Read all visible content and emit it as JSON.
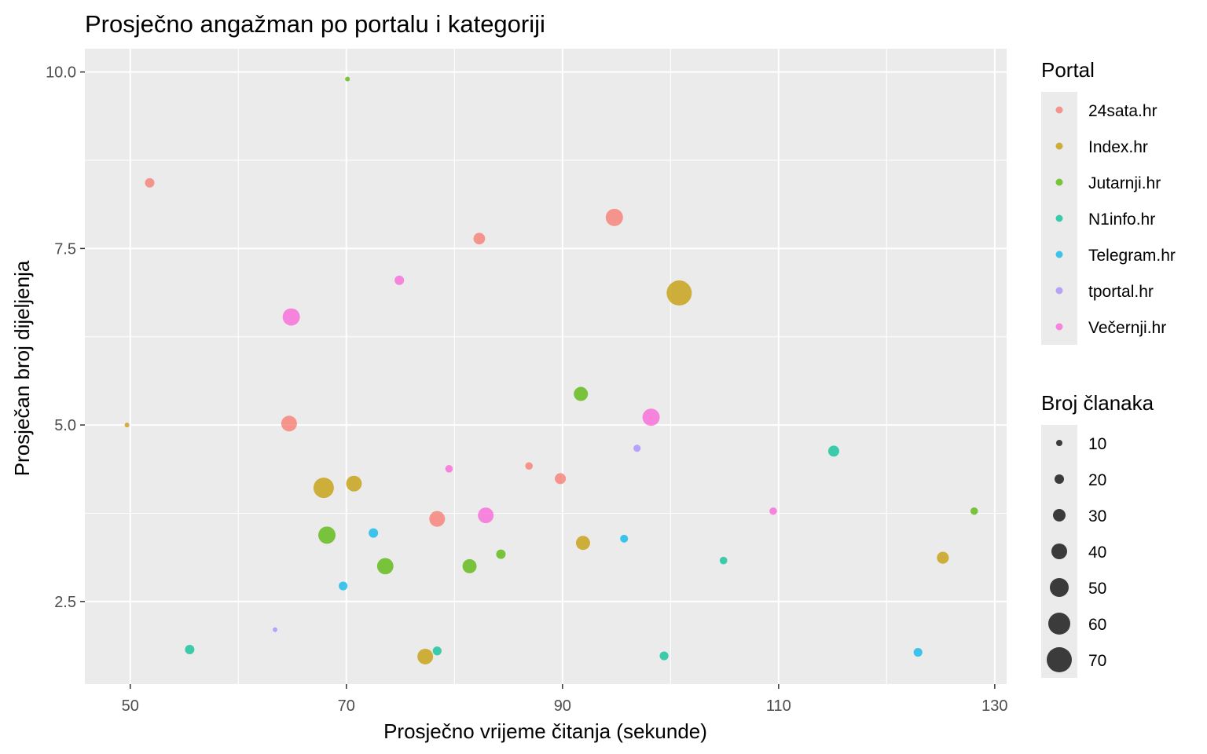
{
  "chart_data": {
    "type": "scatter",
    "title": "Prosječno angažman po portalu i kategoriji",
    "xlabel": "Prosječno vrijeme čitanja (sekunde)",
    "ylabel": "Prosječan broj dijeljenja",
    "xlim": [
      45.8,
      131.1
    ],
    "ylim": [
      1.33,
      10.33
    ],
    "x_ticks": [
      50,
      70,
      90,
      110,
      130
    ],
    "x_tick_labels": [
      "50",
      "70",
      "90",
      "110",
      "130"
    ],
    "y_ticks": [
      2.5,
      5.0,
      7.5,
      10.0
    ],
    "y_tick_labels": [
      "2.5",
      "5.0",
      "7.5",
      "10.0"
    ],
    "grid": true,
    "background": "#ebebeb",
    "point_opacity": 0.75,
    "legend_position": "right",
    "color_legend": {
      "title": "Portal",
      "entries": [
        {
          "label": "24sata.hr",
          "color": "#F8766D"
        },
        {
          "label": "Index.hr",
          "color": "#C49A00"
        },
        {
          "label": "Jutarnji.hr",
          "color": "#53B400"
        },
        {
          "label": "N1info.hr",
          "color": "#00C094"
        },
        {
          "label": "Telegram.hr",
          "color": "#00B6EB"
        },
        {
          "label": "tportal.hr",
          "color": "#A58AFF"
        },
        {
          "label": "Večernji.hr",
          "color": "#FB61D7"
        }
      ]
    },
    "size_legend": {
      "title": "Broj članaka",
      "values": [
        10,
        20,
        30,
        40,
        50,
        60,
        70
      ],
      "labels": [
        "10",
        "20",
        "30",
        "40",
        "50",
        "60",
        "70"
      ]
    },
    "series": [
      {
        "name": "24sata.hr",
        "points": [
          {
            "x": 51.8,
            "y": 8.43,
            "size": 20
          },
          {
            "x": 82.3,
            "y": 7.64,
            "size": 27
          },
          {
            "x": 94.8,
            "y": 7.94,
            "size": 45
          },
          {
            "x": 64.7,
            "y": 5.02,
            "size": 40
          },
          {
            "x": 86.9,
            "y": 4.42,
            "size": 14
          },
          {
            "x": 89.8,
            "y": 4.24,
            "size": 25
          },
          {
            "x": 78.4,
            "y": 3.67,
            "size": 40
          }
        ]
      },
      {
        "name": "Index.hr",
        "points": [
          {
            "x": 100.8,
            "y": 6.87,
            "size": 70
          },
          {
            "x": 49.7,
            "y": 5.0,
            "size": 5
          },
          {
            "x": 67.9,
            "y": 4.11,
            "size": 55
          },
          {
            "x": 70.7,
            "y": 4.17,
            "size": 40
          },
          {
            "x": 91.9,
            "y": 3.33,
            "size": 35
          },
          {
            "x": 125.2,
            "y": 3.12,
            "size": 28
          },
          {
            "x": 77.3,
            "y": 1.72,
            "size": 40
          }
        ]
      },
      {
        "name": "Jutarnji.hr",
        "points": [
          {
            "x": 70.1,
            "y": 9.9,
            "size": 5
          },
          {
            "x": 91.7,
            "y": 5.44,
            "size": 35
          },
          {
            "x": 68.2,
            "y": 3.44,
            "size": 45
          },
          {
            "x": 73.6,
            "y": 3.0,
            "size": 42
          },
          {
            "x": 81.4,
            "y": 3.0,
            "size": 35
          },
          {
            "x": 84.3,
            "y": 3.17,
            "size": 20
          },
          {
            "x": 128.1,
            "y": 3.78,
            "size": 14
          }
        ]
      },
      {
        "name": "N1info.hr",
        "points": [
          {
            "x": 55.5,
            "y": 1.82,
            "size": 20
          },
          {
            "x": 78.4,
            "y": 1.8,
            "size": 18
          },
          {
            "x": 99.4,
            "y": 1.73,
            "size": 18
          },
          {
            "x": 104.9,
            "y": 3.08,
            "size": 14
          },
          {
            "x": 115.1,
            "y": 4.63,
            "size": 25
          }
        ]
      },
      {
        "name": "Telegram.hr",
        "points": [
          {
            "x": 72.5,
            "y": 3.47,
            "size": 20
          },
          {
            "x": 69.7,
            "y": 2.72,
            "size": 18
          },
          {
            "x": 95.7,
            "y": 3.39,
            "size": 15
          },
          {
            "x": 122.9,
            "y": 1.78,
            "size": 18
          }
        ]
      },
      {
        "name": "tportal.hr",
        "points": [
          {
            "x": 96.9,
            "y": 4.67,
            "size": 13
          },
          {
            "x": 63.4,
            "y": 2.1,
            "size": 5
          }
        ]
      },
      {
        "name": "Večernji.hr",
        "points": [
          {
            "x": 74.9,
            "y": 7.05,
            "size": 20
          },
          {
            "x": 64.9,
            "y": 6.53,
            "size": 45
          },
          {
            "x": 98.2,
            "y": 5.11,
            "size": 45
          },
          {
            "x": 79.5,
            "y": 4.38,
            "size": 14
          },
          {
            "x": 82.9,
            "y": 3.72,
            "size": 40
          },
          {
            "x": 109.5,
            "y": 3.78,
            "size": 14
          }
        ]
      }
    ]
  }
}
